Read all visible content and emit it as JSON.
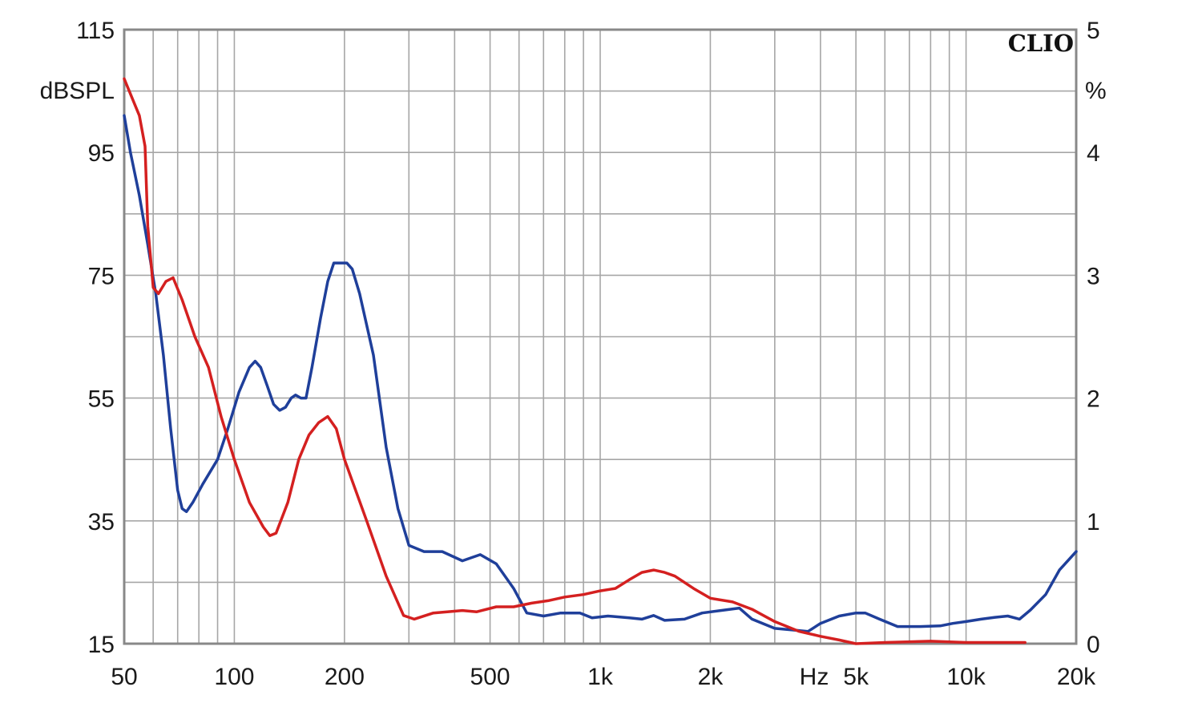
{
  "chart_data": {
    "type": "line",
    "brand_label": "CLIO",
    "y_left": {
      "unit_label": "dBSPL",
      "range": [
        15,
        115
      ],
      "ticks": [
        115,
        95,
        75,
        55,
        35,
        15
      ],
      "tick_labels": [
        "115",
        "95",
        "75",
        "55",
        "35",
        "15"
      ]
    },
    "y_right": {
      "unit_label": "%",
      "range": [
        0,
        5
      ],
      "ticks": [
        5,
        4,
        3,
        2,
        1,
        0
      ],
      "tick_labels": [
        "5",
        "4",
        "3",
        "2",
        "1",
        "0"
      ]
    },
    "x": {
      "scale": "log",
      "range": [
        50,
        20000
      ],
      "unit_label": "Hz",
      "ticks": [
        50,
        100,
        200,
        500,
        1000,
        2000,
        5000,
        10000,
        20000
      ],
      "tick_labels": [
        "50",
        "100",
        "200",
        "500",
        "1k",
        "2k",
        "5k",
        "10k",
        "20k"
      ]
    },
    "grid": true,
    "series": [
      {
        "color": "#1f3f9a",
        "axis": "left",
        "points": [
          [
            50,
            101
          ],
          [
            52,
            95
          ],
          [
            55,
            88
          ],
          [
            58,
            80
          ],
          [
            61,
            72
          ],
          [
            64,
            62
          ],
          [
            67,
            50
          ],
          [
            70,
            40
          ],
          [
            72,
            37
          ],
          [
            74,
            36.5
          ],
          [
            77,
            38
          ],
          [
            82,
            41
          ],
          [
            90,
            45
          ],
          [
            96,
            50
          ],
          [
            103,
            56
          ],
          [
            110,
            60
          ],
          [
            114,
            61
          ],
          [
            118,
            60
          ],
          [
            123,
            57
          ],
          [
            128,
            54
          ],
          [
            133,
            53
          ],
          [
            138,
            53.5
          ],
          [
            143,
            55
          ],
          [
            147,
            55.5
          ],
          [
            152,
            55
          ],
          [
            157,
            55
          ],
          [
            163,
            60
          ],
          [
            172,
            68
          ],
          [
            180,
            74
          ],
          [
            187,
            77
          ],
          [
            195,
            77
          ],
          [
            203,
            77
          ],
          [
            210,
            76
          ],
          [
            220,
            72
          ],
          [
            240,
            62
          ],
          [
            260,
            47
          ],
          [
            280,
            37
          ],
          [
            300,
            31
          ],
          [
            330,
            30
          ],
          [
            370,
            30
          ],
          [
            420,
            28.5
          ],
          [
            470,
            29.5
          ],
          [
            520,
            28
          ],
          [
            580,
            24
          ],
          [
            630,
            20
          ],
          [
            700,
            19.5
          ],
          [
            780,
            20
          ],
          [
            880,
            20
          ],
          [
            950,
            19.2
          ],
          [
            1050,
            19.5
          ],
          [
            1200,
            19.2
          ],
          [
            1300,
            19
          ],
          [
            1400,
            19.6
          ],
          [
            1500,
            18.8
          ],
          [
            1700,
            19
          ],
          [
            1900,
            20
          ],
          [
            2200,
            20.5
          ],
          [
            2400,
            20.8
          ],
          [
            2600,
            19
          ],
          [
            3000,
            17.5
          ],
          [
            3400,
            17.2
          ],
          [
            3700,
            17
          ],
          [
            4000,
            18.3
          ],
          [
            4500,
            19.5
          ],
          [
            5000,
            20
          ],
          [
            5300,
            20
          ],
          [
            5800,
            19
          ],
          [
            6500,
            17.8
          ],
          [
            7500,
            17.8
          ],
          [
            8500,
            17.9
          ],
          [
            9200,
            18.3
          ],
          [
            10000,
            18.6
          ],
          [
            11000,
            19
          ],
          [
            12000,
            19.3
          ],
          [
            13000,
            19.5
          ],
          [
            14000,
            19
          ],
          [
            15000,
            20.5
          ],
          [
            16500,
            23
          ],
          [
            18000,
            27
          ],
          [
            20000,
            30
          ]
        ]
      },
      {
        "color": "#d42020",
        "axis": "right",
        "points": [
          [
            50,
            4.6
          ],
          [
            55,
            4.3
          ],
          [
            57,
            4.05
          ],
          [
            58,
            3.4
          ],
          [
            60,
            2.9
          ],
          [
            62,
            2.85
          ],
          [
            65,
            2.95
          ],
          [
            68,
            2.98
          ],
          [
            72,
            2.8
          ],
          [
            78,
            2.5
          ],
          [
            85,
            2.25
          ],
          [
            92,
            1.85
          ],
          [
            100,
            1.5
          ],
          [
            110,
            1.15
          ],
          [
            120,
            0.95
          ],
          [
            125,
            0.88
          ],
          [
            130,
            0.9
          ],
          [
            140,
            1.15
          ],
          [
            150,
            1.5
          ],
          [
            160,
            1.7
          ],
          [
            170,
            1.8
          ],
          [
            180,
            1.85
          ],
          [
            190,
            1.75
          ],
          [
            200,
            1.5
          ],
          [
            230,
            1.0
          ],
          [
            260,
            0.55
          ],
          [
            290,
            0.23
          ],
          [
            310,
            0.2
          ],
          [
            350,
            0.25
          ],
          [
            420,
            0.27
          ],
          [
            460,
            0.26
          ],
          [
            520,
            0.3
          ],
          [
            580,
            0.3
          ],
          [
            650,
            0.33
          ],
          [
            720,
            0.35
          ],
          [
            800,
            0.38
          ],
          [
            900,
            0.4
          ],
          [
            1000,
            0.43
          ],
          [
            1100,
            0.45
          ],
          [
            1200,
            0.52
          ],
          [
            1300,
            0.58
          ],
          [
            1400,
            0.6
          ],
          [
            1500,
            0.58
          ],
          [
            1600,
            0.55
          ],
          [
            1800,
            0.45
          ],
          [
            2000,
            0.37
          ],
          [
            2300,
            0.34
          ],
          [
            2600,
            0.28
          ],
          [
            3000,
            0.18
          ],
          [
            3500,
            0.1
          ],
          [
            4000,
            0.06
          ],
          [
            4500,
            0.03
          ],
          [
            5000,
            0.0
          ],
          [
            6000,
            0.01
          ],
          [
            8000,
            0.02
          ],
          [
            10000,
            0.01
          ],
          [
            13000,
            0.01
          ],
          [
            14500,
            0.01
          ]
        ]
      }
    ]
  }
}
